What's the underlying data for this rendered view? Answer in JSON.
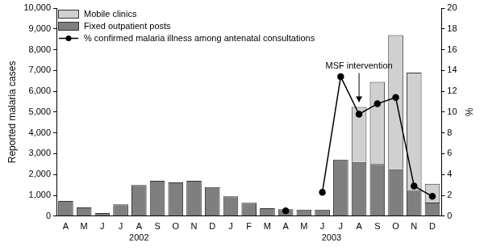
{
  "chart_data": {
    "type": "bar",
    "stacked": true,
    "grid": false,
    "legend": "upper left",
    "categories": [
      "A",
      "M",
      "J",
      "J",
      "A",
      "S",
      "O",
      "N",
      "D",
      "J",
      "F",
      "M",
      "A",
      "M",
      "J",
      "J",
      "A",
      "S",
      "O",
      "N",
      "D"
    ],
    "x_groups": [
      {
        "label": "2002",
        "from": 0,
        "to": 8
      },
      {
        "label": "2003",
        "from": 9,
        "to": 20
      }
    ],
    "y_label": "Reported malaria cases",
    "y2_label": "%",
    "ylim": [
      0,
      10000
    ],
    "yticks": [
      0,
      {
        "value": 1000,
        "label": "1,000"
      },
      {
        "value": 2000,
        "label": "2,000"
      },
      {
        "value": 3000,
        "label": "3,000"
      },
      {
        "value": 4000,
        "label": "4,000"
      },
      {
        "value": 5000,
        "label": "5,000"
      },
      {
        "value": 6000,
        "label": "6,000"
      },
      {
        "value": 7000,
        "label": "7,000"
      },
      {
        "value": 8000,
        "label": "8,000"
      },
      {
        "value": 9000,
        "label": "9,000"
      },
      {
        "value": 10000,
        "label": "10,000"
      }
    ],
    "y2lim": [
      0,
      20
    ],
    "y2ticks": [
      0,
      2,
      4,
      6,
      8,
      10,
      12,
      14,
      16,
      18,
      20
    ],
    "series": [
      {
        "name": "Mobile clinics",
        "type": "bar",
        "color": "#d0d0d0",
        "values": [
          null,
          null,
          null,
          null,
          null,
          null,
          null,
          null,
          null,
          null,
          null,
          null,
          null,
          null,
          null,
          null,
          2650,
          3950,
          6450,
          5650,
          900
        ]
      },
      {
        "name": "Fixed outpatient posts",
        "type": "bar",
        "color": "#7f7f7f",
        "values": [
          730,
          420,
          150,
          560,
          1500,
          1700,
          1620,
          1700,
          1400,
          950,
          640,
          380,
          330,
          310,
          310,
          2720,
          2600,
          2500,
          2250,
          1250,
          650
        ]
      },
      {
        "name": "% confirmed malaria illness among antenatal consultations",
        "type": "line",
        "axis": "y2",
        "color": "#000000",
        "marker": "circle",
        "values": [
          null,
          null,
          null,
          null,
          null,
          null,
          null,
          null,
          null,
          null,
          null,
          null,
          0.5,
          null,
          2.3,
          13.4,
          9.8,
          10.8,
          11.4,
          2.9,
          1.9
        ]
      }
    ],
    "annotations": [
      {
        "text": "MSF intervention",
        "category_index": 16
      }
    ]
  }
}
